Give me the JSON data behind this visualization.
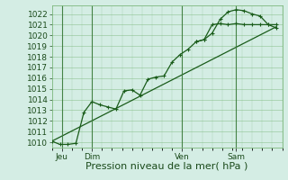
{
  "xlabel": "Pression niveau de la mer( hPa )",
  "ylim": [
    1009.5,
    1022.8
  ],
  "xlim": [
    0,
    11.5
  ],
  "background_color": "#d4ede4",
  "plot_bg_color": "#d4ede4",
  "grid_color": "#7db87d",
  "line_color": "#1a5c1a",
  "series1_x": [
    0.0,
    0.4,
    0.8,
    1.2,
    1.6,
    2.0,
    2.4,
    2.8,
    3.2,
    3.6,
    4.0,
    4.4,
    4.8,
    5.2,
    5.6,
    6.0,
    6.4,
    6.8,
    7.2,
    7.6,
    8.0,
    8.4,
    8.8,
    9.2,
    9.6,
    10.0,
    10.4,
    10.8,
    11.2
  ],
  "series1_y": [
    1010.1,
    1009.8,
    1009.8,
    1009.9,
    1012.8,
    1013.8,
    1013.5,
    1013.3,
    1013.1,
    1014.8,
    1014.9,
    1014.4,
    1015.9,
    1016.1,
    1016.2,
    1017.5,
    1018.2,
    1018.7,
    1019.4,
    1019.6,
    1021.0,
    1021.1,
    1021.0,
    1021.1,
    1021.0,
    1021.0,
    1021.0,
    1021.0,
    1021.0
  ],
  "series2_x": [
    0.0,
    11.2
  ],
  "series2_y": [
    1010.1,
    1020.8
  ],
  "series3_x": [
    7.2,
    7.6,
    8.0,
    8.4,
    8.8,
    9.2,
    9.6,
    10.0,
    10.4,
    10.8,
    11.2
  ],
  "series3_y": [
    1019.4,
    1019.6,
    1020.2,
    1021.5,
    1022.2,
    1022.4,
    1022.3,
    1022.0,
    1021.8,
    1021.0,
    1020.7
  ],
  "yticks": [
    1010,
    1011,
    1012,
    1013,
    1014,
    1015,
    1016,
    1017,
    1018,
    1019,
    1020,
    1021,
    1022
  ],
  "xtick_positions": [
    0.5,
    2.0,
    6.5,
    9.2
  ],
  "xtick_labels": [
    "Jeu",
    "Dim",
    "Ven",
    "Sam"
  ],
  "vline_positions": [
    0.5,
    2.0,
    6.5,
    9.2
  ],
  "xlabel_fontsize": 8,
  "tick_fontsize": 6.5
}
